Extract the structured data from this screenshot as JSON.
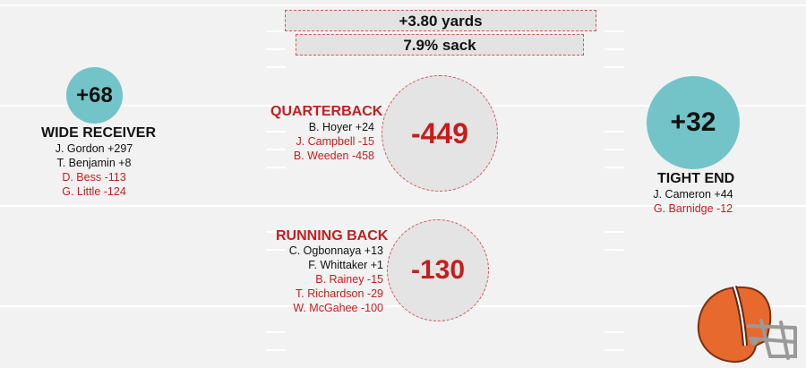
{
  "summary": {
    "yards": "+3.80 yards",
    "sack": "7.9% sack"
  },
  "wide_receiver": {
    "total": "+68",
    "label": "WIDE RECEIVER",
    "players": [
      {
        "text": "J. Gordon +297",
        "tone": "pos"
      },
      {
        "text": "T. Benjamin +8",
        "tone": "pos"
      },
      {
        "text": "D. Bess -113",
        "tone": "neg"
      },
      {
        "text": "G. Little -124",
        "tone": "neg"
      }
    ]
  },
  "quarterback": {
    "total": "-449",
    "label": "QUARTERBACK",
    "players": [
      {
        "text": "B. Hoyer +24",
        "tone": "pos"
      },
      {
        "text": "J. Campbell -15",
        "tone": "neg"
      },
      {
        "text": "B. Weeden -458",
        "tone": "neg"
      }
    ]
  },
  "tight_end": {
    "total": "+32",
    "label": "TIGHT END",
    "players": [
      {
        "text": "J. Cameron +44",
        "tone": "pos"
      },
      {
        "text": "G. Barnidge -12",
        "tone": "neg"
      }
    ]
  },
  "running_back": {
    "total": "-130",
    "label": "RUNNING BACK",
    "players": [
      {
        "text": "C. Ogbonnaya +13",
        "tone": "pos"
      },
      {
        "text": "F. Whittaker +1",
        "tone": "pos"
      },
      {
        "text": "B. Rainey -15",
        "tone": "neg"
      },
      {
        "text": "T. Richardson -29",
        "tone": "neg"
      },
      {
        "text": "W. McGahee -100",
        "tone": "neg"
      }
    ]
  },
  "colors": {
    "positive_circle": "#73c4c8",
    "negative_text": "#c41e1e",
    "dashed_border": "#d9534f",
    "field_background": "#f2f2f2"
  },
  "icons": {
    "helmet": "cleveland-browns-helmet-icon"
  }
}
